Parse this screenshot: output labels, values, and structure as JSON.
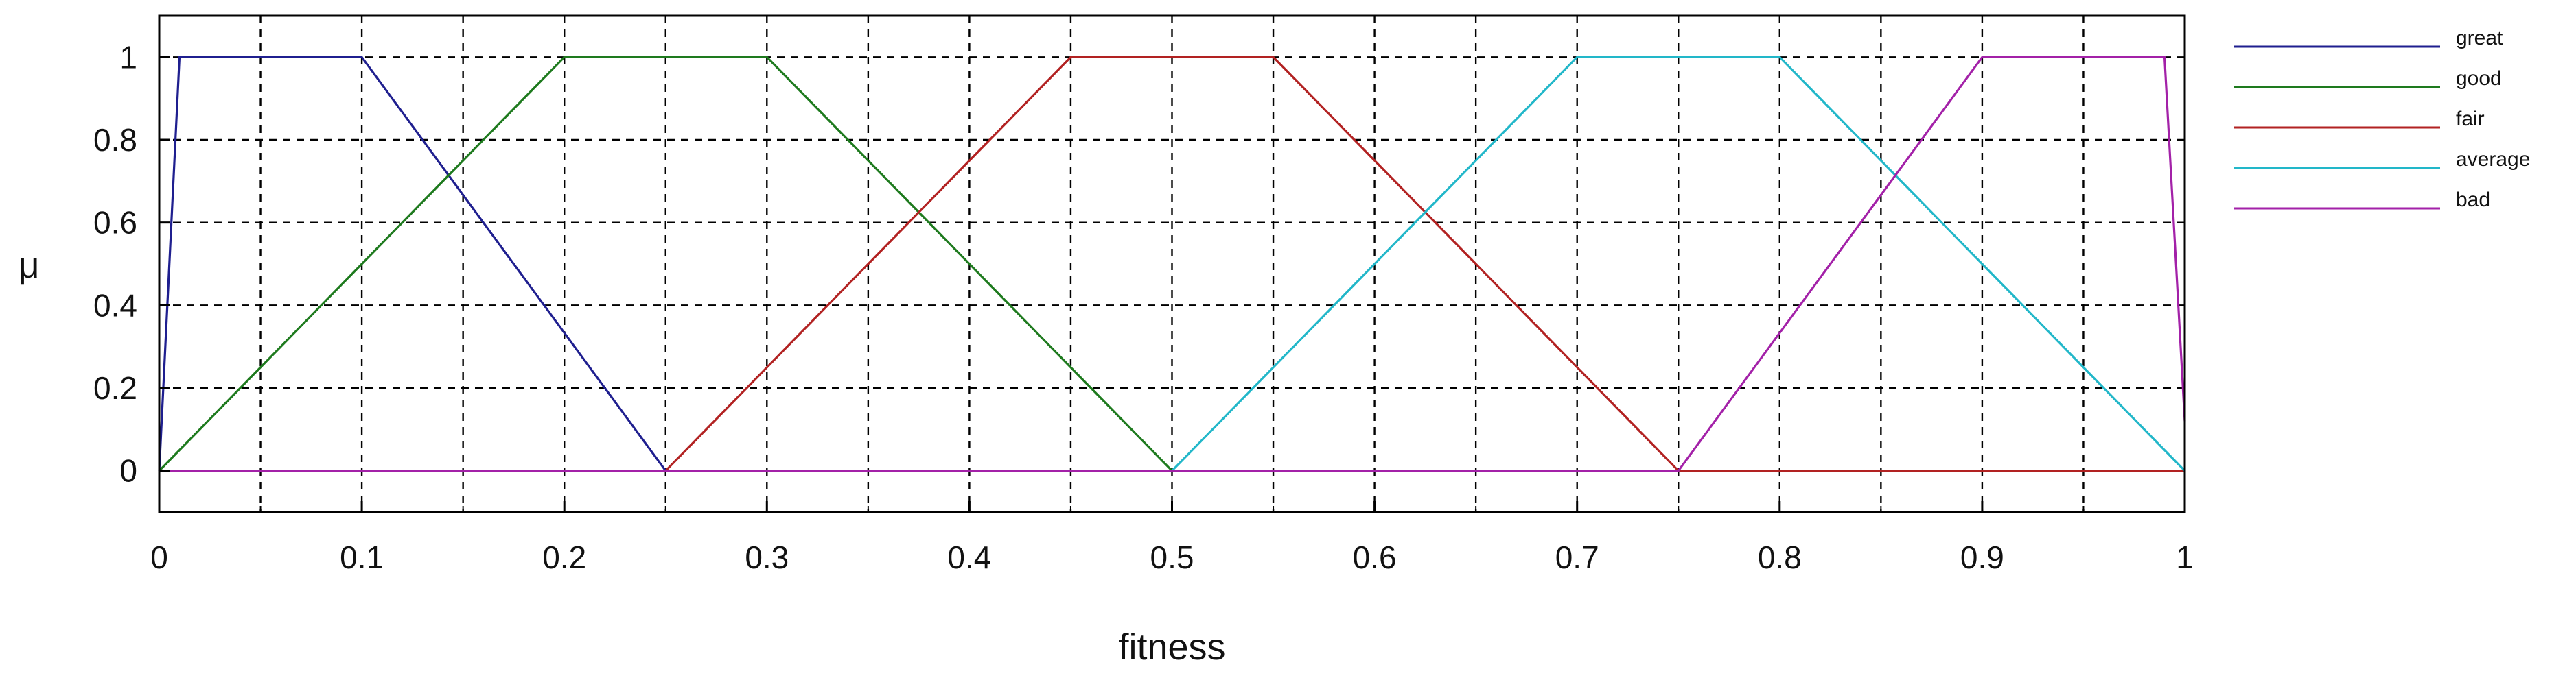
{
  "chart_data": {
    "type": "line",
    "title": "",
    "xlabel": "fitness",
    "ylabel": "μ",
    "xlim": [
      0,
      1
    ],
    "ylim": [
      -0.1,
      1.1
    ],
    "x_ticks": [
      0,
      0.1,
      0.2,
      0.3,
      0.4,
      0.5,
      0.6,
      0.7,
      0.8,
      0.9,
      1
    ],
    "x_tick_labels": [
      "0",
      "0.1",
      "0.2",
      "0.3",
      "0.4",
      "0.5",
      "0.6",
      "0.7",
      "0.8",
      "0.9",
      "1"
    ],
    "x_grid": [
      0.05,
      0.1,
      0.15,
      0.2,
      0.25,
      0.3,
      0.35,
      0.4,
      0.45,
      0.5,
      0.55,
      0.6,
      0.65,
      0.7,
      0.75,
      0.8,
      0.85,
      0.9,
      0.95
    ],
    "y_ticks": [
      0,
      0.2,
      0.4,
      0.6,
      0.8,
      1
    ],
    "y_tick_labels": [
      "0",
      "0.2",
      "0.4",
      "0.6",
      "0.8",
      "1"
    ],
    "grid": true,
    "legend_position": "right",
    "series": [
      {
        "name": "great",
        "color": "#1f1f8f",
        "points": [
          [
            0,
            0
          ],
          [
            0.01,
            1
          ],
          [
            0.1,
            1
          ],
          [
            0.25,
            0
          ],
          [
            1,
            0
          ]
        ]
      },
      {
        "name": "good",
        "color": "#1e7a1e",
        "points": [
          [
            0,
            0
          ],
          [
            0.2,
            1
          ],
          [
            0.3,
            1
          ],
          [
            0.5,
            0
          ],
          [
            1,
            0
          ]
        ]
      },
      {
        "name": "fair",
        "color": "#b22222",
        "points": [
          [
            0,
            0
          ],
          [
            0.25,
            0
          ],
          [
            0.45,
            1
          ],
          [
            0.55,
            1
          ],
          [
            0.75,
            0
          ],
          [
            1,
            0
          ]
        ]
      },
      {
        "name": "average",
        "color": "#22b7c9",
        "points": [
          [
            0,
            0
          ],
          [
            0.5,
            0
          ],
          [
            0.7,
            1
          ],
          [
            0.8,
            1
          ],
          [
            1,
            0
          ]
        ]
      },
      {
        "name": "bad",
        "color": "#a321a8",
        "points": [
          [
            0,
            0
          ],
          [
            0.75,
            0
          ],
          [
            0.9,
            1
          ],
          [
            0.99,
            1
          ],
          [
            1,
            0.12
          ]
        ]
      }
    ]
  }
}
